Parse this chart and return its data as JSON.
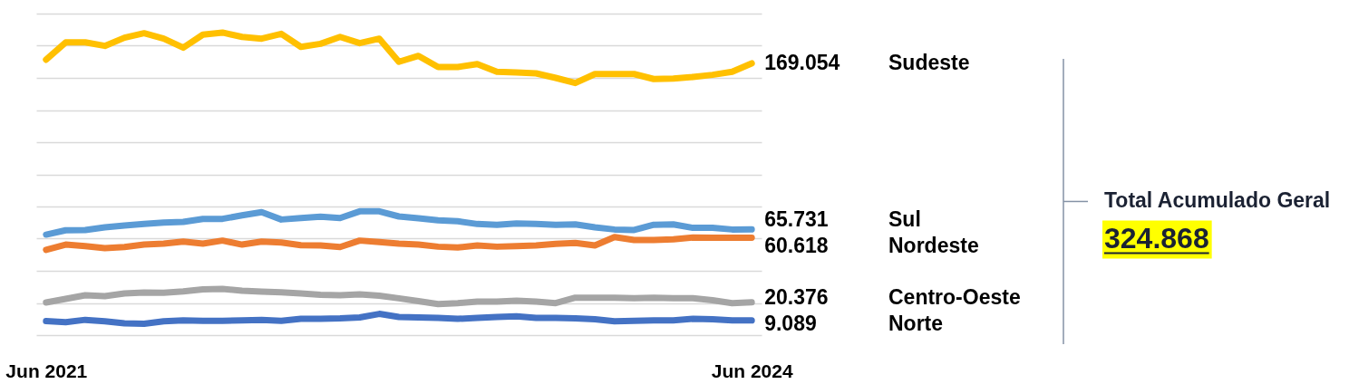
{
  "chart_data": {
    "type": "line",
    "categories": [
      "Jun 2021",
      null,
      null,
      null,
      null,
      null,
      null,
      null,
      null,
      null,
      null,
      null,
      null,
      null,
      null,
      null,
      null,
      null,
      null,
      null,
      null,
      null,
      null,
      null,
      null,
      null,
      null,
      null,
      null,
      null,
      null,
      null,
      null,
      null,
      null,
      null,
      "Jun 2024"
    ],
    "ylim": [
      0,
      200
    ],
    "yticks": [
      {
        "value": 0,
        "label": null
      },
      {
        "value": 20,
        "label": null
      },
      {
        "value": 40,
        "label": null
      },
      {
        "value": 60,
        "label": null
      },
      {
        "value": 80,
        "label": null
      },
      {
        "value": 100,
        "label": null
      },
      {
        "value": 120,
        "label": null
      },
      {
        "value": 140,
        "label": null
      },
      {
        "value": 160,
        "label": null
      },
      {
        "value": 180,
        "label": null
      },
      {
        "value": 200,
        "label": null
      }
    ],
    "grid": "y",
    "tick_labels": "x",
    "line_style": "solid",
    "series": [
      {
        "name": "Sudeste",
        "color": "#ffc000",
        "values": [
          171.3,
          182.1,
          182.1,
          179.9,
          185.0,
          187.8,
          184.4,
          178.8,
          186.9,
          188.2,
          185.5,
          184.4,
          187.4,
          179.3,
          181.2,
          185.5,
          181.6,
          184.4,
          170.0,
          173.7,
          166.8,
          166.8,
          168.6,
          163.8,
          163.4,
          162.8,
          160.0,
          156.8,
          162.4,
          162.4,
          162.4,
          159.3,
          159.6,
          160.6,
          161.9,
          163.8,
          169.054
        ],
        "value_labels": [
          null,
          null,
          null,
          null,
          null,
          null,
          null,
          null,
          null,
          null,
          null,
          null,
          null,
          null,
          null,
          null,
          null,
          null,
          null,
          null,
          null,
          null,
          null,
          null,
          null,
          null,
          null,
          null,
          null,
          null,
          null,
          null,
          null,
          null,
          null,
          null,
          "169.054"
        ]
      },
      {
        "name": "Sul",
        "color": "#5b9bd5",
        "values": [
          62.5,
          65.2,
          65.4,
          67.0,
          68.2,
          69.1,
          70.0,
          70.4,
          72.3,
          72.3,
          74.5,
          76.5,
          71.9,
          72.8,
          73.6,
          72.8,
          77.0,
          77.0,
          73.8,
          72.7,
          71.4,
          70.8,
          69.1,
          68.6,
          69.5,
          69.1,
          68.6,
          68.9,
          67.0,
          65.7,
          65.4,
          68.6,
          68.9,
          66.7,
          66.7,
          65.7,
          65.731
        ],
        "value_labels": [
          null,
          null,
          null,
          null,
          null,
          null,
          null,
          null,
          null,
          null,
          null,
          null,
          null,
          null,
          null,
          null,
          null,
          null,
          null,
          null,
          null,
          null,
          null,
          null,
          null,
          null,
          null,
          null,
          null,
          null,
          null,
          null,
          null,
          null,
          null,
          null,
          "65.731"
        ]
      },
      {
        "name": "Nordeste",
        "color": "#ed7d31",
        "values": [
          53.0,
          56.3,
          55.4,
          54.1,
          54.8,
          56.3,
          56.9,
          58.2,
          56.9,
          58.8,
          56.3,
          58.2,
          57.6,
          55.9,
          55.8,
          54.8,
          58.8,
          57.9,
          56.9,
          56.3,
          55.0,
          54.5,
          55.8,
          55.0,
          55.4,
          55.8,
          56.7,
          57.3,
          55.8,
          61.0,
          59.2,
          59.2,
          59.6,
          60.7,
          60.5,
          60.5,
          60.618
        ],
        "value_labels": [
          null,
          null,
          null,
          null,
          null,
          null,
          null,
          null,
          null,
          null,
          null,
          null,
          null,
          null,
          null,
          null,
          null,
          null,
          null,
          null,
          null,
          null,
          null,
          null,
          null,
          null,
          null,
          null,
          null,
          null,
          null,
          null,
          null,
          null,
          null,
          null,
          "60.618"
        ]
      },
      {
        "name": "Centro-Oeste",
        "color": "#a5a5a5",
        "values": [
          20.3,
          22.5,
          24.8,
          24.2,
          25.9,
          26.5,
          26.3,
          27.2,
          28.5,
          28.7,
          27.6,
          27.0,
          26.6,
          25.9,
          25.1,
          24.8,
          25.4,
          24.5,
          22.9,
          21.1,
          19.3,
          19.9,
          20.8,
          20.8,
          21.4,
          20.8,
          19.9,
          23.3,
          23.3,
          23.3,
          22.9,
          23.3,
          22.9,
          22.9,
          21.7,
          19.9,
          20.376
        ],
        "value_labels": [
          null,
          null,
          null,
          null,
          null,
          null,
          null,
          null,
          null,
          null,
          null,
          null,
          null,
          null,
          null,
          null,
          null,
          null,
          null,
          null,
          null,
          null,
          null,
          null,
          null,
          null,
          null,
          null,
          null,
          null,
          null,
          null,
          null,
          null,
          null,
          null,
          "20.376"
        ]
      },
      {
        "name": "Norte",
        "color": "#4472c4",
        "values": [
          8.7,
          8.0,
          9.5,
          8.6,
          7.3,
          7.0,
          8.6,
          9.2,
          8.9,
          8.9,
          9.2,
          9.5,
          8.9,
          10.1,
          10.1,
          10.4,
          11.0,
          13.2,
          11.3,
          11.0,
          10.7,
          10.1,
          10.7,
          11.3,
          11.7,
          10.7,
          10.7,
          10.4,
          9.8,
          8.6,
          8.9,
          9.2,
          9.2,
          10.1,
          9.8,
          9.2,
          9.089
        ],
        "value_labels": [
          null,
          null,
          null,
          null,
          null,
          null,
          null,
          null,
          null,
          null,
          null,
          null,
          null,
          null,
          null,
          null,
          null,
          null,
          null,
          null,
          null,
          null,
          null,
          null,
          null,
          null,
          null,
          null,
          null,
          null,
          null,
          null,
          null,
          null,
          null,
          null,
          "9.089"
        ]
      }
    ],
    "annotations": [
      "Total Acumulado Geral",
      "324.868"
    ]
  }
}
